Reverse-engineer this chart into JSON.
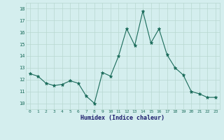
{
  "x": [
    0,
    1,
    2,
    3,
    4,
    5,
    6,
    7,
    8,
    9,
    10,
    11,
    12,
    13,
    14,
    15,
    16,
    17,
    18,
    19,
    20,
    21,
    22,
    23
  ],
  "y": [
    12.5,
    12.3,
    11.7,
    11.5,
    11.6,
    11.9,
    11.7,
    10.6,
    10.0,
    12.6,
    12.3,
    14.0,
    16.3,
    14.9,
    17.8,
    15.1,
    16.3,
    14.1,
    13.0,
    12.4,
    11.0,
    10.8,
    10.5,
    10.5
  ],
  "line_color": "#1a6b5a",
  "marker": "*",
  "marker_size": 3.5,
  "bg_color": "#d4eeee",
  "grid_color": "#b8d8d0",
  "xlabel": "Humidex (Indice chaleur)",
  "ylim": [
    9.5,
    18.5
  ],
  "xlim": [
    -0.5,
    23.5
  ],
  "yticks": [
    10,
    11,
    12,
    13,
    14,
    15,
    16,
    17,
    18
  ],
  "xticks": [
    0,
    1,
    2,
    3,
    4,
    5,
    6,
    7,
    8,
    9,
    10,
    11,
    12,
    13,
    14,
    15,
    16,
    17,
    18,
    19,
    20,
    21,
    22,
    23
  ],
  "xlabel_color": "#1a1a6b",
  "tick_color": "#1a6b5a"
}
